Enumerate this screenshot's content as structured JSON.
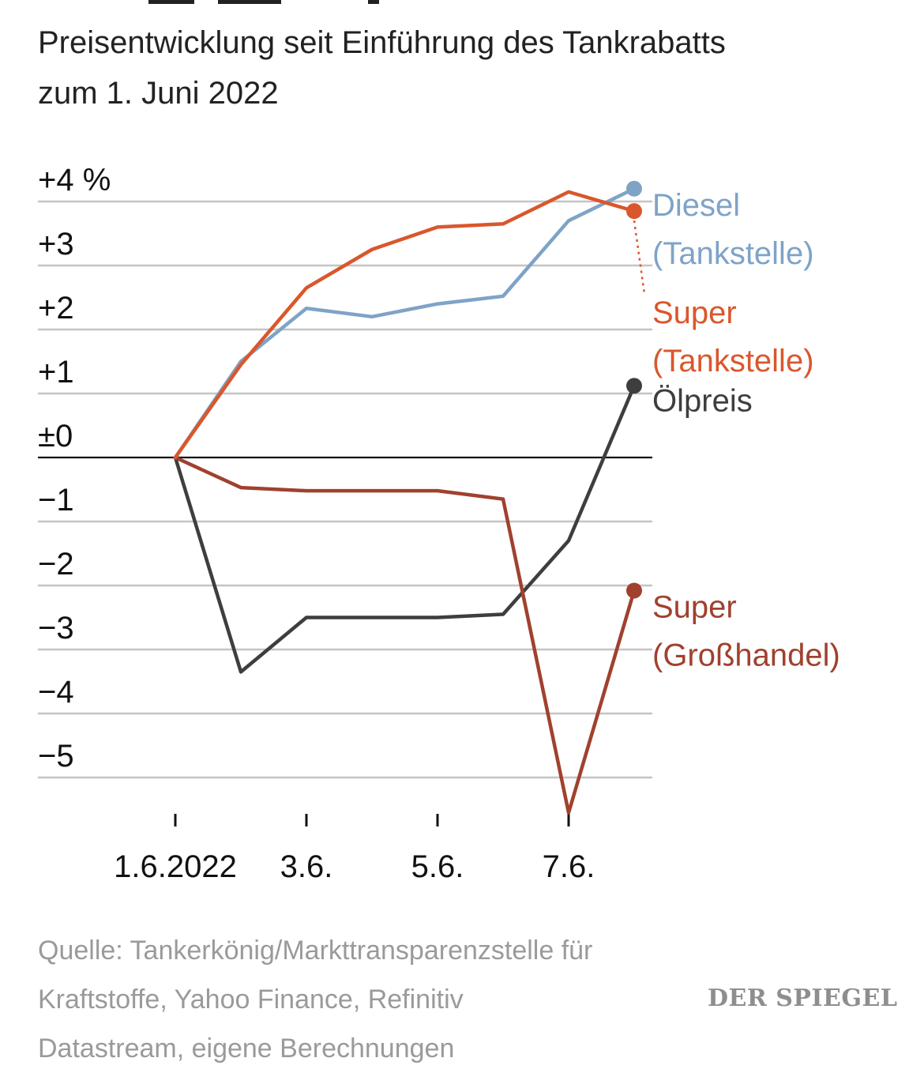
{
  "title_lines": [
    "Preisentwicklung seit Einführung des Tankrabatts",
    "zum 1. Juni 2022"
  ],
  "chart_data": {
    "type": "line",
    "title": "Preisentwicklung seit Einführung des Tankrabatts zum 1. Juni 2022",
    "ylabel": "%",
    "ylim": [
      -5.5,
      4.3
    ],
    "xlim": [
      0,
      7
    ],
    "x": [
      0,
      1,
      2,
      3,
      4,
      5,
      6,
      7
    ],
    "y_ticks": [
      {
        "value": 4,
        "label": "+4 %"
      },
      {
        "value": 3,
        "label": "+3"
      },
      {
        "value": 2,
        "label": "+2"
      },
      {
        "value": 1,
        "label": "+1"
      },
      {
        "value": 0,
        "label": "±0"
      },
      {
        "value": -1,
        "label": "−1"
      },
      {
        "value": -2,
        "label": "−2"
      },
      {
        "value": -3,
        "label": "−3"
      },
      {
        "value": -4,
        "label": "−4"
      },
      {
        "value": -5,
        "label": "−5"
      }
    ],
    "x_ticks": [
      {
        "value": 0,
        "label": "1.6.2022"
      },
      {
        "value": 2,
        "label": "3.6."
      },
      {
        "value": 4,
        "label": "5.6."
      },
      {
        "value": 6,
        "label": "7.6."
      }
    ],
    "series": [
      {
        "name": "Diesel (Tankstelle)",
        "label_lines": [
          "Diesel",
          "(Tankstelle)"
        ],
        "color": "#7ea3c7",
        "values": [
          0,
          1.5,
          2.33,
          2.2,
          2.4,
          2.52,
          3.7,
          4.2
        ]
      },
      {
        "name": "Super (Tankstelle)",
        "label_lines": [
          "Super",
          "(Tankstelle)"
        ],
        "color": "#d9572c",
        "values": [
          0,
          1.45,
          2.65,
          3.25,
          3.6,
          3.65,
          4.15,
          3.85
        ]
      },
      {
        "name": "Ölpreis",
        "label_lines": [
          "Ölpreis"
        ],
        "color": "#3e3e3e",
        "values": [
          0,
          -3.35,
          -2.5,
          -2.5,
          -2.5,
          -2.45,
          -1.3,
          1.12
        ]
      },
      {
        "name": "Super (Großhandel)",
        "label_lines": [
          "Super",
          "(Großhandel)"
        ],
        "color": "#a0412e",
        "values": [
          0,
          -0.47,
          -0.52,
          -0.52,
          -0.52,
          -0.65,
          -5.55,
          -2.08
        ]
      }
    ]
  },
  "source_lines": [
    "Quelle: Tankerkönig/Markttransparenzstelle für",
    "Kraftstoffe, Yahoo Finance, Refinitiv",
    "Datastream, eigene Berechnungen"
  ],
  "logo_text": "DER SPIEGEL"
}
